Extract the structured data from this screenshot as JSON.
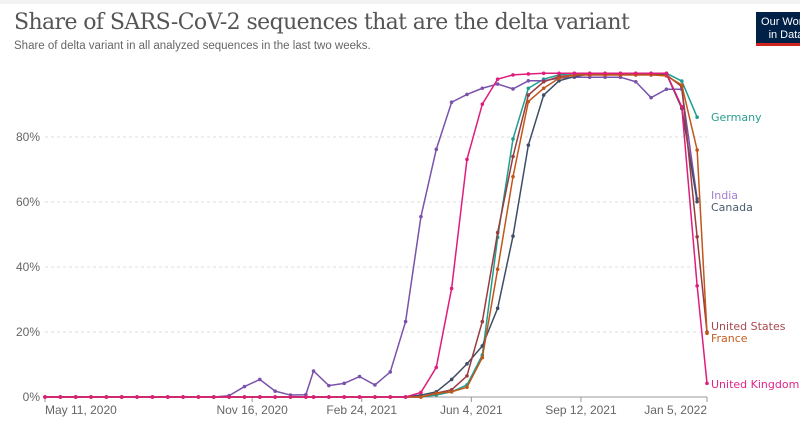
{
  "chart_data": {
    "type": "line",
    "title": "Share of SARS-CoV-2 sequences that are the delta variant",
    "subtitle": "Share of delta variant in all analyzed sequences in the last two weeks.",
    "logo_text": "Our World in Data",
    "xlim": [
      "2020-05-11",
      "2022-01-05"
    ],
    "ylim": [
      0,
      100
    ],
    "y_ticks": [
      0,
      20,
      40,
      60,
      80
    ],
    "y_tick_labels": [
      "0%",
      "20%",
      "40%",
      "60%",
      "80%"
    ],
    "x_ticks": [
      "2020-05-11",
      "2020-11-16",
      "2021-02-24",
      "2021-06-04",
      "2021-09-12",
      "2022-01-05"
    ],
    "x_tick_labels": [
      "May 11, 2020",
      "Nov 16, 2020",
      "Feb 24, 2021",
      "Jun 4, 2021",
      "Sep 12, 2021",
      "Jan 5, 2022"
    ],
    "grid": "horizontal dashed",
    "legend": "right, inline labels at line ends",
    "x": [
      "2020-05-11",
      "2020-05-25",
      "2020-06-08",
      "2020-06-22",
      "2020-07-06",
      "2020-07-20",
      "2020-08-03",
      "2020-08-17",
      "2020-08-31",
      "2020-09-14",
      "2020-09-28",
      "2020-10-12",
      "2020-10-26",
      "2020-11-09",
      "2020-11-23",
      "2020-12-07",
      "2020-12-21",
      "2021-01-04",
      "2021-01-11",
      "2021-01-25",
      "2021-02-08",
      "2021-02-22",
      "2021-03-08",
      "2021-03-22",
      "2021-04-05",
      "2021-04-19",
      "2021-05-03",
      "2021-05-17",
      "2021-05-31",
      "2021-06-14",
      "2021-06-28",
      "2021-07-12",
      "2021-07-26",
      "2021-08-09",
      "2021-08-23",
      "2021-09-06",
      "2021-09-20",
      "2021-10-04",
      "2021-10-18",
      "2021-11-01",
      "2021-11-15",
      "2021-11-29",
      "2021-12-13",
      "2021-12-27",
      "2022-01-05"
    ],
    "series": [
      {
        "name": "Germany",
        "color": "#1f9e8e",
        "label_color": "#2a9d8f",
        "values": [
          0,
          0,
          0,
          0,
          0,
          0,
          0,
          0,
          0,
          0,
          0,
          0,
          0,
          0,
          0,
          0,
          0,
          0,
          0,
          0,
          0,
          0,
          0,
          0,
          0,
          0,
          0.6,
          1.6,
          3.7,
          12.9,
          49.1,
          79.4,
          95,
          97.8,
          99.1,
          99.6,
          99.6,
          99.6,
          99.6,
          99.6,
          99.6,
          99.6,
          97.2,
          86.1,
          null
        ]
      },
      {
        "name": "India",
        "color": "#7a52ab",
        "label_color": "#a27fcc",
        "values": [
          0,
          0,
          0,
          0,
          0,
          0,
          0,
          0,
          0,
          0,
          0,
          0,
          0.4,
          3.2,
          5.4,
          1.8,
          0.6,
          0.7,
          8.0,
          3.5,
          4.2,
          6.3,
          3.7,
          7.7,
          23.2,
          55.5,
          76.2,
          90.7,
          93.1,
          95.0,
          96.3,
          94.8,
          97.3,
          97.3,
          98.1,
          98.4,
          98.4,
          98.4,
          98.4,
          97.0,
          92.1,
          94.7,
          94.7,
          61,
          null
        ]
      },
      {
        "name": "Canada",
        "color": "#3c4e66",
        "label_color": "#4a5a70",
        "values": [
          0,
          0,
          0,
          0,
          0,
          0,
          0,
          0,
          0,
          0,
          0,
          0,
          0,
          0,
          0,
          0,
          0,
          0,
          0,
          0,
          0,
          0,
          0,
          0,
          0,
          0.6,
          1.6,
          5.4,
          10.2,
          15.7,
          27.3,
          49.5,
          77.5,
          92.9,
          97.3,
          98.6,
          99.4,
          99.4,
          99.4,
          99.4,
          99.4,
          99.4,
          88.8,
          60.1,
          null
        ]
      },
      {
        "name": "United States",
        "color": "#993b3f",
        "label_color": "#a64a4e",
        "values": [
          0,
          0,
          0,
          0,
          0,
          0,
          0,
          0,
          0,
          0,
          0,
          0,
          0,
          0,
          0,
          0,
          0,
          0,
          0,
          0,
          0,
          0,
          0,
          0,
          0,
          0,
          1.2,
          2.2,
          6.5,
          23.2,
          50.6,
          74,
          92.9,
          97,
          98.6,
          99.1,
          99.1,
          99.1,
          99.1,
          99.1,
          99.1,
          99.1,
          95.5,
          49.3,
          20
        ]
      },
      {
        "name": "France",
        "color": "#c0561a",
        "label_color": "#c45e22",
        "values": [
          0,
          0,
          0,
          0,
          0,
          0,
          0,
          0,
          0,
          0,
          0,
          0,
          0,
          0,
          0,
          0,
          0,
          0,
          0,
          0,
          0,
          0,
          0,
          0,
          0,
          0,
          1.1,
          1.6,
          3.0,
          12.1,
          39.3,
          67.8,
          90.9,
          95,
          98.1,
          99.1,
          99.1,
          99.1,
          99.1,
          99.1,
          99.1,
          98.8,
          96,
          76,
          19.6
        ]
      },
      {
        "name": "United Kingdom",
        "color": "#de1d7c",
        "label_color": "#e0258a",
        "values": [
          0,
          0,
          0,
          0,
          0,
          0,
          0,
          0,
          0,
          0,
          0,
          0,
          0,
          0,
          0,
          0,
          0,
          0,
          0,
          0,
          0,
          0,
          0,
          0,
          0,
          1.4,
          9.1,
          33.4,
          73.1,
          90.1,
          97.8,
          99.1,
          99.4,
          99.6,
          99.6,
          99.6,
          99.6,
          99.6,
          99.6,
          99.6,
          99.6,
          99.6,
          89.3,
          34.2,
          4.2
        ]
      }
    ]
  }
}
